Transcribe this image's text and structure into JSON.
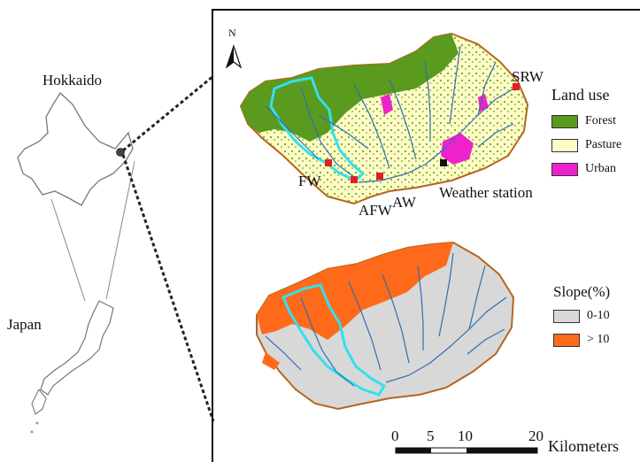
{
  "labels": {
    "hokkaido": "Hokkaido",
    "japan": "Japan",
    "north": "N"
  },
  "land_use": {
    "title": "Land use",
    "items": [
      {
        "label": "Forest",
        "color": "#5a9a1e"
      },
      {
        "label": "Pasture",
        "color": "#fffbc6"
      },
      {
        "label": "Urban",
        "color": "#ee22cc"
      }
    ]
  },
  "slope": {
    "title": "Slope(%)",
    "items": [
      {
        "label": "0-10",
        "color": "#d8d8d8"
      },
      {
        "label": "> 10",
        "color": "#ff6a1a"
      }
    ]
  },
  "stations": {
    "srw": "SRW",
    "fw": "FW",
    "afw": "AFW",
    "aw": "AW",
    "weather": "Weather station"
  },
  "scale_bar": {
    "ticks": [
      "0",
      "5",
      "10",
      "20"
    ],
    "unit": "Kilometers"
  }
}
